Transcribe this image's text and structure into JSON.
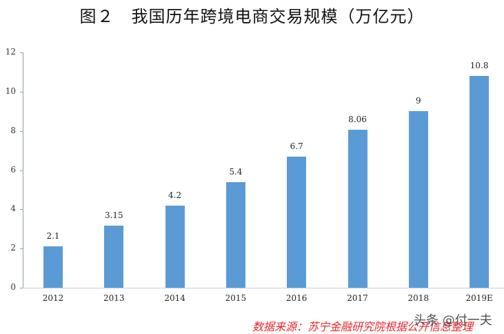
{
  "title": "图２　我国历年跨境电商交易规模（万亿元）",
  "source_note": "数据来源：苏宁金融研究院根据公开信息整理",
  "watermark": "头条 @付一夫",
  "colors": {
    "bar": "#5b9bd5",
    "source_text": "#e8262b"
  },
  "y_ticks": [
    "0",
    "2",
    "4",
    "6",
    "8",
    "10",
    "12"
  ],
  "chart_data": {
    "type": "bar",
    "title": "图２　我国历年跨境电商交易规模（万亿元）",
    "xlabel": "",
    "ylabel": "",
    "categories": [
      "2012",
      "2013",
      "2014",
      "2015",
      "2016",
      "2017",
      "2018",
      "2019E"
    ],
    "values": [
      2.1,
      3.15,
      4.2,
      5.4,
      6.7,
      8.06,
      9,
      10.8
    ],
    "value_labels": [
      "2.1",
      "3.15",
      "4.2",
      "5.4",
      "6.7",
      "8.06",
      "9",
      "10.8"
    ],
    "ylim": [
      0,
      12
    ],
    "y_ticks": [
      0,
      2,
      4,
      6,
      8,
      10,
      12
    ],
    "grid": false,
    "legend": "none"
  }
}
